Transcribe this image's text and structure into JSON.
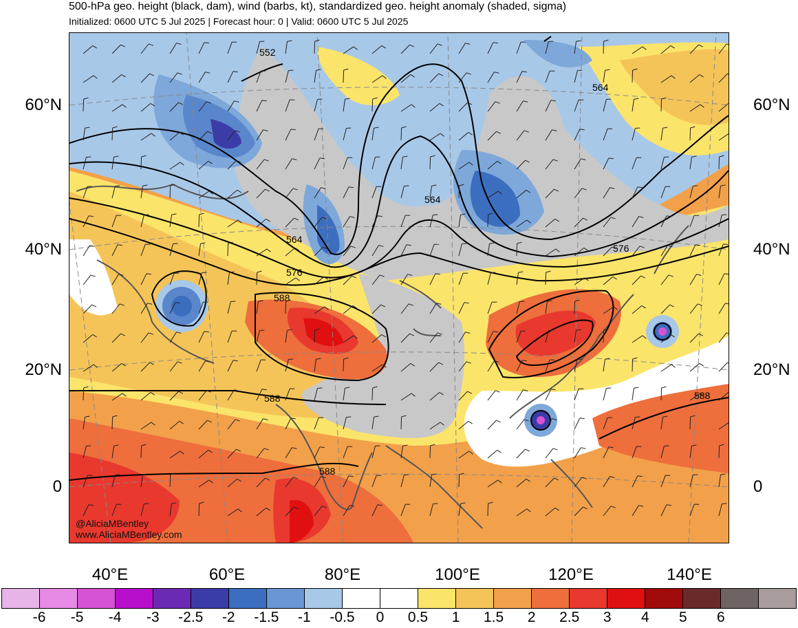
{
  "header": {
    "title": "500-hPa geo. height (black, dam), wind (barbs, kt), standardized geo. height anomaly (shaded, sigma)",
    "subtitle": "Initialized: 0600 UTC 5 Jul 2025 | Forecast hour: 0 | Valid: 0600 UTC 5 Jul 2025"
  },
  "map": {
    "region": "Asia and western Pacific",
    "lat_labels": [
      "60°N",
      "40°N",
      "20°N",
      "0"
    ],
    "lon_labels": [
      "40°E",
      "60°E",
      "80°E",
      "100°E",
      "120°E",
      "140°E"
    ],
    "contour_labels": [
      "552",
      "564",
      "564",
      "564",
      "576",
      "576",
      "588",
      "588",
      "588",
      "588"
    ],
    "credit_handle": "@AliciaMBentley",
    "credit_url": "www.AliciaMBentley.com"
  },
  "colors": {
    "shading": {
      "neg_2": "#3c6ec0",
      "neg_1_5": "#5a86cc",
      "neg_1": "#7ea8da",
      "neg_0_5": "#a8c8e8",
      "neutral": "#ffffff",
      "grey": "#c8c8c8",
      "pos_0_5": "#fbe46a",
      "pos_1": "#f5c458",
      "pos_1_5": "#f3a04a",
      "pos_2": "#ee6e3c",
      "pos_2_5": "#e9382e",
      "pos_3": "#e01010"
    }
  },
  "colorbar": {
    "ticks": [
      "-6",
      "-5",
      "-4",
      "-3",
      "-2.5",
      "-2",
      "-1.5",
      "-1",
      "-0.5",
      "0",
      "0.5",
      "1",
      "1.5",
      "2",
      "2.5",
      "3",
      "4",
      "5",
      "6"
    ],
    "colors": [
      "#e6b4e6",
      "#e68ae6",
      "#d653d6",
      "#b80fcc",
      "#6a2ab3",
      "#3c3ca8",
      "#3c6ec0",
      "#6a96d4",
      "#a8c8e8",
      "#ffffff",
      "#ffffff",
      "#fbe46a",
      "#f5c458",
      "#f3a04a",
      "#ee6e3c",
      "#e9382e",
      "#e01010",
      "#a00a0a",
      "#6b2a2a",
      "#6e6464",
      "#a89c9c"
    ]
  }
}
